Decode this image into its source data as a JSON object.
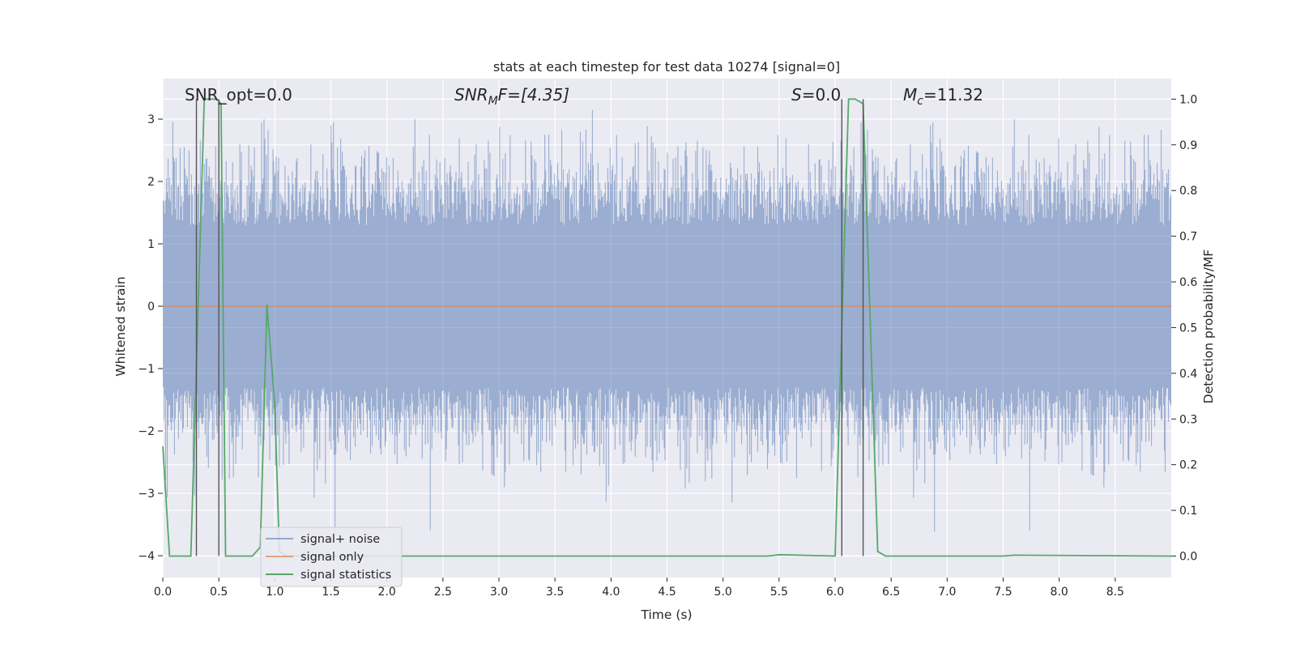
{
  "chart_data": {
    "type": "line",
    "title": "stats at each timestep for test data 10274 [signal=0]",
    "xlabel": "Time (s)",
    "ylabel": "Whitened strain",
    "ylabel_right": "Detection probability/MF",
    "xlim": [
      0.0,
      9.0
    ],
    "ylim": [
      -4.35,
      3.65
    ],
    "ylim_right": [
      -0.047,
      1.045
    ],
    "x_ticks": [
      "0.0",
      "0.5",
      "1.0",
      "1.5",
      "2.0",
      "2.5",
      "3.0",
      "3.5",
      "4.0",
      "4.5",
      "5.0",
      "5.5",
      "6.0",
      "6.5",
      "7.0",
      "7.5",
      "8.0",
      "8.5"
    ],
    "x_tick_values": [
      0,
      0.5,
      1,
      1.5,
      2,
      2.5,
      3,
      3.5,
      4,
      4.5,
      5,
      5.5,
      6,
      6.5,
      7,
      7.5,
      8,
      8.5
    ],
    "y_ticks": [
      "3",
      "2",
      "1",
      "0",
      "−1",
      "−2",
      "−3",
      "−4"
    ],
    "y_tick_values": [
      3,
      2,
      1,
      0,
      -1,
      -2,
      -3,
      -4
    ],
    "y_ticks_right": [
      "1.0",
      "0.9",
      "0.8",
      "0.7",
      "0.6",
      "0.5",
      "0.4",
      "0.3",
      "0.2",
      "0.1",
      "0.0"
    ],
    "y_tick_values_right": [
      1.0,
      0.9,
      0.8,
      0.7,
      0.6,
      0.5,
      0.4,
      0.3,
      0.2,
      0.1,
      0.0
    ],
    "grid": true,
    "legend_position": "lower-left",
    "annotations": {
      "snr_opt": "SNR_opt=0.0",
      "snr_mf_prefix": "SNR",
      "snr_mf_sub": "M",
      "snr_mf_suffix": "F=[4.35]",
      "s_label_italic": "S",
      "s_label_value": "=0.0",
      "mc_label_italic": "M",
      "mc_label_sub": "c",
      "mc_label_value": "=11.32"
    },
    "vertical_markers_x": [
      0.3,
      0.5,
      6.06,
      6.25
    ],
    "series": [
      {
        "name": "signal+ noise",
        "color": "#4c72b0",
        "style": "dense noise band",
        "band_approx": [
          -1.3,
          1.3
        ],
        "max_approx": 3.3,
        "min_approx": -4.0
      },
      {
        "name": "signal only",
        "color": "#dd8452",
        "x": [
          0.0,
          9.0
        ],
        "values": [
          0.0,
          0.0
        ]
      },
      {
        "name": "signal statistics",
        "color": "#55a868",
        "axis": "right",
        "x": [
          0.0,
          0.06,
          0.25,
          0.37,
          0.48,
          0.52,
          0.56,
          0.8,
          0.87,
          0.93,
          1.0,
          1.04,
          1.1,
          5.4,
          5.5,
          6.0,
          6.06,
          6.12,
          6.18,
          6.25,
          6.38,
          6.45,
          7.5,
          7.6,
          9.0
        ],
        "values": [
          0.24,
          0.0,
          0.0,
          1.0,
          1.0,
          0.99,
          0.0,
          0.0,
          0.02,
          0.55,
          0.33,
          0.01,
          0.0,
          0.0,
          0.003,
          0.0,
          0.5,
          1.0,
          1.0,
          0.99,
          0.01,
          0.0,
          0.0,
          0.002,
          0.0
        ]
      }
    ]
  }
}
